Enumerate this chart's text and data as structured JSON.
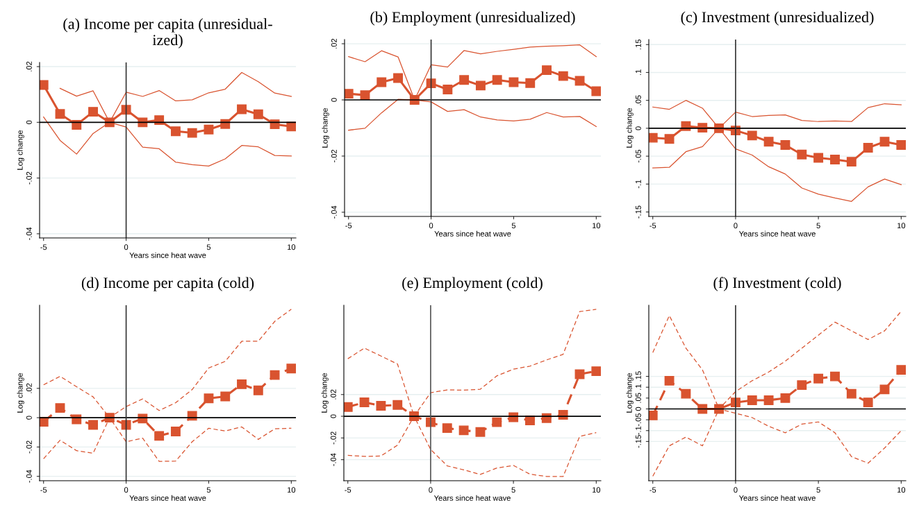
{
  "chart_data": [
    {
      "type": "line",
      "title": "(a) Income per capita (unresidual-\nized)",
      "xlabel": "Years since heat wave",
      "ylabel": "Log change",
      "x": [
        -5,
        -4,
        -3,
        -2,
        -1,
        0,
        1,
        2,
        3,
        4,
        5,
        6,
        7,
        8,
        9,
        10
      ],
      "xlim": [
        -5.24,
        10.28
      ],
      "xticks": [
        -5,
        0,
        5,
        10
      ],
      "ylim": [
        -0.0415,
        0.0215
      ],
      "yticks": [
        {
          "value": -0.04,
          "label": "-.04"
        },
        {
          "value": -0.02,
          "label": "-.02"
        },
        0,
        {
          "value": 0.02,
          "label": ".02"
        }
      ],
      "grid": "y",
      "ref_lines": [
        {
          "axis": "y",
          "value": 0,
          "color": "#000000"
        },
        {
          "axis": "x",
          "value": 0,
          "color": "#333333"
        }
      ],
      "series": [
        {
          "color": "#d9532f",
          "marker": "square",
          "line_style": "solid",
          "values": [
            0.0134,
            0.003,
            -0.0009,
            0.0038,
            0,
            0.0045,
            0.0,
            0.0008,
            -0.0032,
            -0.0038,
            -0.0026,
            -0.0006,
            0.0047,
            0.0029,
            -0.0007,
            -0.0015
          ]
        },
        {
          "color": "#d9532f",
          "marker": "none",
          "line_style": "solid",
          "values": [
            null,
            0.0122,
            0.0094,
            0.0113,
            0,
            0.0108,
            0.0093,
            0.0114,
            0.0077,
            0.0081,
            0.0106,
            0.0119,
            0.0179,
            0.0146,
            0.0105,
            0.0093
          ]
        },
        {
          "color": "#d9532f",
          "marker": "none",
          "line_style": "solid",
          "values": [
            0.0019,
            -0.0065,
            -0.0114,
            -0.004,
            0,
            -0.0017,
            -0.0089,
            -0.0095,
            -0.0143,
            -0.0152,
            -0.0157,
            -0.0131,
            -0.0083,
            -0.0088,
            -0.0119,
            -0.0121
          ]
        }
      ]
    },
    {
      "type": "line",
      "title": "(b) Employment (unresidualized)",
      "xlabel": "Years since heat wave",
      "ylabel": "Log change",
      "x": [
        -5,
        -4,
        -3,
        -2,
        -1,
        0,
        1,
        2,
        3,
        4,
        5,
        6,
        7,
        8,
        9,
        10
      ],
      "xlim": [
        -5.24,
        10.28
      ],
      "xticks": [
        -5,
        0,
        5,
        10
      ],
      "ylim": [
        -0.0415,
        0.0215
      ],
      "yticks": [
        {
          "value": -0.04,
          "label": "-.04"
        },
        {
          "value": -0.02,
          "label": "-.02"
        },
        0,
        {
          "value": 0.02,
          "label": ".02"
        }
      ],
      "grid": "y",
      "ref_lines": [
        {
          "axis": "y",
          "value": 0,
          "color": "#000000"
        },
        {
          "axis": "x",
          "value": 0,
          "color": "#333333"
        }
      ],
      "series": [
        {
          "color": "#d9532f",
          "marker": "square",
          "line_style": "solid",
          "values": [
            0.0022,
            0.0017,
            0.0063,
            0.0078,
            0,
            0.0059,
            0.0037,
            0.0071,
            0.0051,
            0.0071,
            0.0063,
            0.006,
            0.0106,
            0.0085,
            0.0068,
            0.0031
          ]
        },
        {
          "color": "#d9532f",
          "marker": "none",
          "line_style": "solid",
          "values": [
            0.0154,
            0.0136,
            0.0175,
            0.0153,
            0,
            0.0125,
            0.0117,
            0.0176,
            0.0164,
            0.0173,
            0.018,
            0.0188,
            0.0191,
            0.0193,
            0.0196,
            0.0154
          ]
        },
        {
          "color": "#d9532f",
          "marker": "none",
          "line_style": "solid",
          "values": [
            -0.0108,
            -0.0101,
            -0.0046,
            0.0002,
            0,
            -0.0007,
            -0.0041,
            -0.0035,
            -0.0061,
            -0.0071,
            -0.0075,
            -0.0069,
            -0.0045,
            -0.0061,
            -0.0059,
            -0.0095
          ]
        }
      ]
    },
    {
      "type": "line",
      "title": "(c) Investment (unresidualized)",
      "xlabel": "Years since heat wave",
      "ylabel": "Log change",
      "x": [
        -5,
        -4,
        -3,
        -2,
        -1,
        0,
        1,
        2,
        3,
        4,
        5,
        6,
        7,
        8,
        9,
        10
      ],
      "xlim": [
        -5.24,
        10.28
      ],
      "xticks": [
        -5,
        0,
        5,
        10
      ],
      "ylim": [
        -0.158,
        0.159
      ],
      "yticks": [
        {
          "value": -0.15,
          "label": "-.15"
        },
        {
          "value": -0.1,
          "label": "-.1"
        },
        {
          "value": -0.05,
          "label": "-.05"
        },
        0,
        {
          "value": 0.05,
          "label": ".05"
        },
        {
          "value": 0.1,
          "label": ".1"
        },
        {
          "value": 0.15,
          "label": ".15"
        }
      ],
      "grid": "y",
      "ref_lines": [
        {
          "axis": "y",
          "value": 0,
          "color": "#000000"
        },
        {
          "axis": "x",
          "value": 0,
          "color": "#333333"
        }
      ],
      "series": [
        {
          "color": "#d9532f",
          "marker": "square",
          "line_style": "solid",
          "values": [
            -0.017,
            -0.019,
            0.004,
            0.001,
            0,
            -0.004,
            -0.013,
            -0.024,
            -0.03,
            -0.047,
            -0.053,
            -0.056,
            -0.06,
            -0.035,
            -0.024,
            -0.03
          ]
        },
        {
          "color": "#d9532f",
          "marker": "none",
          "line_style": "solid",
          "values": [
            0.038,
            0.034,
            0.05,
            0.036,
            0,
            0.029,
            0.021,
            0.023,
            0.024,
            0.014,
            0.012,
            0.013,
            0.012,
            0.037,
            0.044,
            0.042
          ]
        },
        {
          "color": "#d9532f",
          "marker": "none",
          "line_style": "solid",
          "values": [
            -0.071,
            -0.07,
            -0.042,
            -0.033,
            0,
            -0.037,
            -0.048,
            -0.069,
            -0.082,
            -0.107,
            -0.118,
            -0.125,
            -0.131,
            -0.105,
            -0.091,
            -0.101
          ]
        }
      ]
    },
    {
      "type": "line",
      "title": "(d) Income per capita (cold)",
      "xlabel": "Years since heat wave",
      "ylabel": "Log change",
      "x": [
        -5,
        -4,
        -3,
        -2,
        -1,
        0,
        1,
        2,
        3,
        4,
        5,
        6,
        7,
        8,
        9,
        10
      ],
      "xlim": [
        -5.24,
        10.28
      ],
      "xticks": [
        -5,
        0,
        5,
        10
      ],
      "ylim": [
        -0.043,
        0.0767
      ],
      "yticks": [
        {
          "value": -0.04,
          "label": "-.04"
        },
        {
          "value": -0.02,
          "label": "-.02"
        },
        0,
        {
          "value": 0.02,
          "label": ".02"
        }
      ],
      "grid": "y",
      "ref_lines": [
        {
          "axis": "y",
          "value": 0,
          "color": "#000000"
        },
        {
          "axis": "x",
          "value": 0,
          "color": "#333333"
        }
      ],
      "series": [
        {
          "color": "#d9532f",
          "marker": "square",
          "line_style": "dashed",
          "values": [
            -0.0028,
            0.0066,
            -0.0011,
            -0.0049,
            0,
            -0.0049,
            -0.0006,
            -0.0124,
            -0.0094,
            0.0013,
            0.0132,
            0.0145,
            0.0228,
            0.0186,
            0.0291,
            0.0335
          ]
        },
        {
          "color": "#d9532f",
          "marker": "none",
          "line_style": "dashed",
          "values": [
            0.0224,
            0.0282,
            0.0211,
            0.0142,
            0,
            0.0076,
            0.0128,
            0.0049,
            0.0102,
            0.0192,
            0.0339,
            0.0384,
            0.0521,
            0.0521,
            0.0657,
            0.074
          ]
        },
        {
          "color": "#d9532f",
          "marker": "none",
          "line_style": "dashed",
          "values": [
            -0.028,
            -0.0154,
            -0.0225,
            -0.0243,
            0,
            -0.0164,
            -0.014,
            -0.0298,
            -0.0296,
            -0.0164,
            -0.0072,
            -0.0091,
            -0.0063,
            -0.0148,
            -0.0076,
            -0.0072
          ]
        }
      ]
    },
    {
      "type": "line",
      "title": "(e) Employment (cold)",
      "xlabel": "Years since heat wave",
      "ylabel": "Log change",
      "x": [
        -5,
        -4,
        -3,
        -2,
        -1,
        0,
        1,
        2,
        3,
        4,
        5,
        6,
        7,
        8,
        9,
        10
      ],
      "xlim": [
        -5.24,
        10.28
      ],
      "xticks": [
        -5,
        0,
        5,
        10
      ],
      "ylim": [
        -0.0594,
        0.1023
      ],
      "yticks": [
        {
          "value": -0.04,
          "label": "-.04"
        },
        {
          "value": -0.02,
          "label": "-.02"
        },
        0,
        {
          "value": 0.02,
          "label": ".02"
        }
      ],
      "grid": "y",
      "ref_lines": [
        {
          "axis": "y",
          "value": 0,
          "color": "#000000"
        },
        {
          "axis": "x",
          "value": 0,
          "color": "#555555"
        }
      ],
      "series": [
        {
          "color": "#d9532f",
          "marker": "square",
          "line_style": "dashed",
          "values": [
            0.0085,
            0.0128,
            0.0096,
            0.0104,
            0,
            -0.0055,
            -0.0109,
            -0.013,
            -0.0145,
            -0.0055,
            -0.0009,
            -0.0038,
            -0.0017,
            0.0013,
            0.0387,
            0.0415
          ]
        },
        {
          "color": "#d9532f",
          "marker": "none",
          "line_style": "dashed",
          "values": [
            0.053,
            0.0628,
            0.0555,
            0.0481,
            0,
            0.0217,
            0.0243,
            0.024,
            0.0249,
            0.0372,
            0.0434,
            0.0462,
            0.0519,
            0.057,
            0.0964,
            0.0985
          ]
        },
        {
          "color": "#d9532f",
          "marker": "none",
          "line_style": "dashed",
          "values": [
            -0.036,
            -0.037,
            -0.0366,
            -0.0266,
            0,
            -0.0306,
            -0.0457,
            -0.0494,
            -0.0536,
            -0.0477,
            -0.0453,
            -0.0534,
            -0.0555,
            -0.0555,
            -0.0185,
            -0.0151
          ]
        }
      ]
    },
    {
      "type": "line",
      "title": "(f) Investment (cold)",
      "xlabel": "Years since heat wave",
      "ylabel": "Log change",
      "x": [
        -5,
        -4,
        -3,
        -2,
        -1,
        0,
        1,
        2,
        3,
        4,
        5,
        6,
        7,
        8,
        9,
        10
      ],
      "xlim": [
        -5.24,
        10.28
      ],
      "xticks": [
        -5,
        0,
        5,
        10
      ],
      "ylim": [
        -0.331,
        0.478
      ],
      "yticks": [
        {
          "value": -0.15,
          "label": "-.15"
        },
        {
          "value": -0.1,
          "label": "-.1"
        },
        {
          "value": -0.05,
          "label": "-.05"
        },
        0,
        {
          "value": 0.05,
          "label": ".05"
        },
        {
          "value": 0.1,
          "label": ".1"
        },
        {
          "value": 0.15,
          "label": ".15"
        }
      ],
      "grid": "y",
      "ref_lines": [
        {
          "axis": "y",
          "value": 0,
          "color": "#000000"
        },
        {
          "axis": "x",
          "value": 0,
          "color": "#333333"
        }
      ],
      "series": [
        {
          "color": "#d9532f",
          "marker": "square",
          "line_style": "dashed",
          "values": [
            -0.03,
            0.13,
            0.07,
            0,
            0,
            0.03,
            0.04,
            0.04,
            0.05,
            0.11,
            0.14,
            0.15,
            0.07,
            0.03,
            0.09,
            0.18
          ]
        },
        {
          "color": "#d9532f",
          "marker": "none",
          "line_style": "dashed",
          "values": [
            0.26,
            0.43,
            0.28,
            0.18,
            0,
            0.08,
            0.13,
            0.17,
            0.22,
            0.28,
            0.34,
            0.4,
            0.36,
            0.32,
            0.36,
            0.45
          ]
        },
        {
          "color": "#d9532f",
          "marker": "none",
          "line_style": "dashed",
          "values": [
            -0.31,
            -0.17,
            -0.13,
            -0.17,
            0,
            -0.02,
            -0.04,
            -0.08,
            -0.11,
            -0.07,
            -0.06,
            -0.11,
            -0.22,
            -0.25,
            -0.18,
            -0.1
          ]
        }
      ]
    }
  ]
}
